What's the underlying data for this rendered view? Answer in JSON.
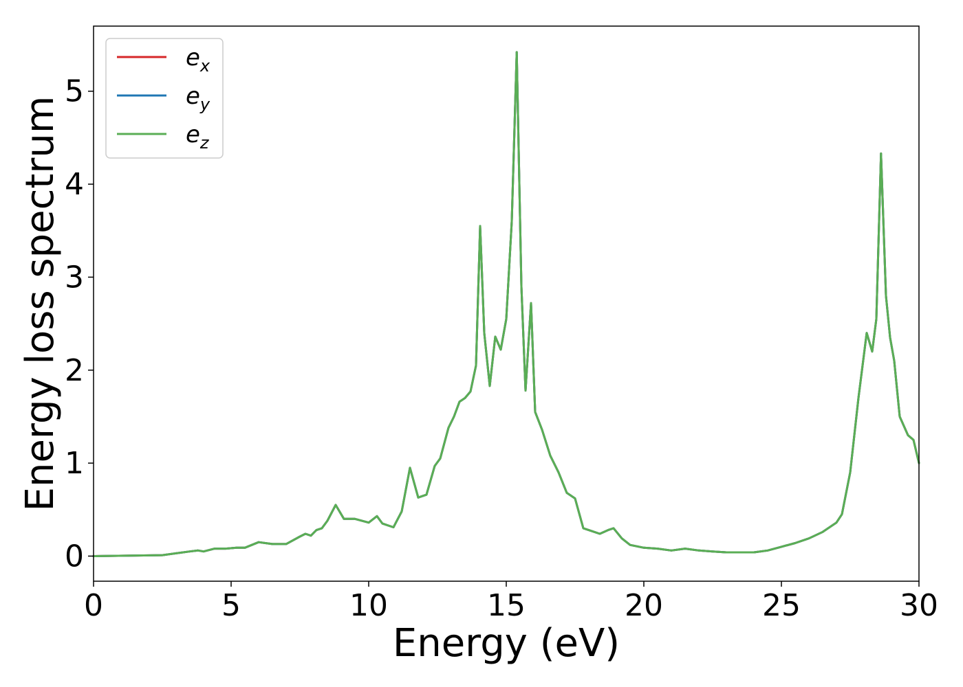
{
  "chart_data": {
    "type": "line",
    "title": "",
    "xlabel": "Energy (eV)",
    "ylabel": "Energy loss spectrum",
    "xlim": [
      0,
      30
    ],
    "ylim": [
      -0.27,
      5.7
    ],
    "xticks": [
      "0",
      "5",
      "10",
      "15",
      "20",
      "25",
      "30"
    ],
    "yticks": [
      "0",
      "1",
      "2",
      "3",
      "4",
      "5"
    ],
    "grid": false,
    "legend_position": "top-left",
    "series": [
      {
        "name_main": "e",
        "name_sub": "x",
        "color": "#d62728",
        "x": [
          0,
          2.5,
          3,
          3.5,
          3.8,
          4,
          4.4,
          4.8,
          5.2,
          5.5,
          6,
          6.5,
          7,
          7.5,
          7.7,
          7.9,
          8.1,
          8.3,
          8.5,
          8.8,
          9.1,
          9.5,
          10,
          10.3,
          10.5,
          10.9,
          11.2,
          11.5,
          11.8,
          12.1,
          12.4,
          12.6,
          12.9,
          13.1,
          13.3,
          13.5,
          13.7,
          13.9,
          14.05,
          14.2,
          14.4,
          14.6,
          14.8,
          15.0,
          15.2,
          15.38,
          15.55,
          15.7,
          15.9,
          16.05,
          16.3,
          16.6,
          16.9,
          17.2,
          17.5,
          17.8,
          18.1,
          18.4,
          18.7,
          18.9,
          19.2,
          19.5,
          20,
          20.5,
          21,
          21.5,
          22,
          22.5,
          23,
          23.5,
          24,
          24.5,
          25,
          25.5,
          26,
          26.5,
          27,
          27.2,
          27.5,
          27.8,
          28.1,
          28.3,
          28.45,
          28.62,
          28.8,
          28.95,
          29.1,
          29.3,
          29.6,
          29.8,
          30.0
        ],
        "y": [
          0,
          0.01,
          0.03,
          0.05,
          0.06,
          0.05,
          0.08,
          0.08,
          0.09,
          0.09,
          0.15,
          0.13,
          0.13,
          0.21,
          0.24,
          0.22,
          0.28,
          0.3,
          0.38,
          0.55,
          0.4,
          0.4,
          0.36,
          0.43,
          0.35,
          0.31,
          0.48,
          0.95,
          0.63,
          0.66,
          0.97,
          1.05,
          1.38,
          1.5,
          1.66,
          1.7,
          1.77,
          2.05,
          3.55,
          2.4,
          1.83,
          2.36,
          2.22,
          2.55,
          3.6,
          5.42,
          2.9,
          1.78,
          2.72,
          1.55,
          1.36,
          1.08,
          0.9,
          0.68,
          0.62,
          0.3,
          0.27,
          0.24,
          0.28,
          0.3,
          0.19,
          0.12,
          0.09,
          0.08,
          0.06,
          0.08,
          0.06,
          0.05,
          0.04,
          0.04,
          0.04,
          0.06,
          0.1,
          0.14,
          0.19,
          0.26,
          0.36,
          0.45,
          0.9,
          1.7,
          2.4,
          2.2,
          2.55,
          4.33,
          2.8,
          2.35,
          2.1,
          1.5,
          1.3,
          1.25,
          1.0
        ]
      },
      {
        "name_main": "e",
        "name_sub": "y",
        "color": "#1f77b4",
        "x": [
          0,
          2.5,
          3,
          3.5,
          3.8,
          4,
          4.4,
          4.8,
          5.2,
          5.5,
          6,
          6.5,
          7,
          7.5,
          7.7,
          7.9,
          8.1,
          8.3,
          8.5,
          8.8,
          9.1,
          9.5,
          10,
          10.3,
          10.5,
          10.9,
          11.2,
          11.5,
          11.8,
          12.1,
          12.4,
          12.6,
          12.9,
          13.1,
          13.3,
          13.5,
          13.7,
          13.9,
          14.05,
          14.2,
          14.4,
          14.6,
          14.8,
          15.0,
          15.2,
          15.38,
          15.55,
          15.7,
          15.9,
          16.05,
          16.3,
          16.6,
          16.9,
          17.2,
          17.5,
          17.8,
          18.1,
          18.4,
          18.7,
          18.9,
          19.2,
          19.5,
          20,
          20.5,
          21,
          21.5,
          22,
          22.5,
          23,
          23.5,
          24,
          24.5,
          25,
          25.5,
          26,
          26.5,
          27,
          27.2,
          27.5,
          27.8,
          28.1,
          28.3,
          28.45,
          28.62,
          28.8,
          28.95,
          29.1,
          29.3,
          29.6,
          29.8,
          30.0
        ],
        "y": [
          0,
          0.01,
          0.03,
          0.05,
          0.06,
          0.05,
          0.08,
          0.08,
          0.09,
          0.09,
          0.15,
          0.13,
          0.13,
          0.21,
          0.24,
          0.22,
          0.28,
          0.3,
          0.38,
          0.55,
          0.4,
          0.4,
          0.36,
          0.43,
          0.35,
          0.31,
          0.48,
          0.95,
          0.63,
          0.66,
          0.97,
          1.05,
          1.38,
          1.5,
          1.66,
          1.7,
          1.77,
          2.05,
          3.55,
          2.4,
          1.83,
          2.36,
          2.22,
          2.55,
          3.6,
          5.42,
          2.9,
          1.78,
          2.72,
          1.55,
          1.36,
          1.08,
          0.9,
          0.68,
          0.62,
          0.3,
          0.27,
          0.24,
          0.28,
          0.3,
          0.19,
          0.12,
          0.09,
          0.08,
          0.06,
          0.08,
          0.06,
          0.05,
          0.04,
          0.04,
          0.04,
          0.06,
          0.1,
          0.14,
          0.19,
          0.26,
          0.36,
          0.45,
          0.9,
          1.7,
          2.4,
          2.2,
          2.55,
          4.33,
          2.8,
          2.35,
          2.1,
          1.5,
          1.3,
          1.25,
          1.0
        ]
      },
      {
        "name_main": "e",
        "name_sub": "z",
        "color": "#5aae55",
        "x": [
          0,
          2.5,
          3,
          3.5,
          3.8,
          4,
          4.4,
          4.8,
          5.2,
          5.5,
          6,
          6.5,
          7,
          7.5,
          7.7,
          7.9,
          8.1,
          8.3,
          8.5,
          8.8,
          9.1,
          9.5,
          10,
          10.3,
          10.5,
          10.9,
          11.2,
          11.5,
          11.8,
          12.1,
          12.4,
          12.6,
          12.9,
          13.1,
          13.3,
          13.5,
          13.7,
          13.9,
          14.05,
          14.2,
          14.4,
          14.6,
          14.8,
          15.0,
          15.2,
          15.38,
          15.55,
          15.7,
          15.9,
          16.05,
          16.3,
          16.6,
          16.9,
          17.2,
          17.5,
          17.8,
          18.1,
          18.4,
          18.7,
          18.9,
          19.2,
          19.5,
          20,
          20.5,
          21,
          21.5,
          22,
          22.5,
          23,
          23.5,
          24,
          24.5,
          25,
          25.5,
          26,
          26.5,
          27,
          27.2,
          27.5,
          27.8,
          28.1,
          28.3,
          28.45,
          28.62,
          28.8,
          28.95,
          29.1,
          29.3,
          29.6,
          29.8,
          30.0
        ],
        "y": [
          0,
          0.01,
          0.03,
          0.05,
          0.06,
          0.05,
          0.08,
          0.08,
          0.09,
          0.09,
          0.15,
          0.13,
          0.13,
          0.21,
          0.24,
          0.22,
          0.28,
          0.3,
          0.38,
          0.55,
          0.4,
          0.4,
          0.36,
          0.43,
          0.35,
          0.31,
          0.48,
          0.95,
          0.63,
          0.66,
          0.97,
          1.05,
          1.38,
          1.5,
          1.66,
          1.7,
          1.77,
          2.05,
          3.55,
          2.4,
          1.83,
          2.36,
          2.22,
          2.55,
          3.6,
          5.42,
          2.9,
          1.78,
          2.72,
          1.55,
          1.36,
          1.08,
          0.9,
          0.68,
          0.62,
          0.3,
          0.27,
          0.24,
          0.28,
          0.3,
          0.19,
          0.12,
          0.09,
          0.08,
          0.06,
          0.08,
          0.06,
          0.05,
          0.04,
          0.04,
          0.04,
          0.06,
          0.1,
          0.14,
          0.19,
          0.26,
          0.36,
          0.45,
          0.9,
          1.7,
          2.4,
          2.2,
          2.55,
          4.33,
          2.8,
          2.35,
          2.1,
          1.5,
          1.3,
          1.25,
          1.0
        ]
      }
    ]
  }
}
